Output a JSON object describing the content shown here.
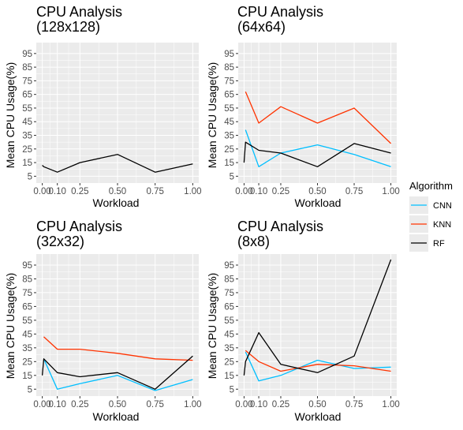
{
  "legend": {
    "title": "Algorithm",
    "entries": [
      {
        "name": "CNN",
        "color": "#00BFFF"
      },
      {
        "name": "KNN",
        "color": "#FF3300"
      },
      {
        "name": "RF",
        "color": "#000000"
      }
    ]
  },
  "chart_data": [
    {
      "type": "line",
      "title": [
        "CPU Analysis",
        "(128x128)"
      ],
      "xlabel": "Workload",
      "ylabel": "Mean CPU Usage(%)",
      "x_ticks": [
        "0.00",
        "0.10",
        "0.25",
        "0.50",
        "0.75",
        "1.00"
      ],
      "y_ticks": [
        "5",
        "15",
        "25",
        "35",
        "45",
        "55",
        "65",
        "75",
        "85",
        "95"
      ],
      "xlim": [
        -0.04,
        1.04
      ],
      "ylim": [
        0,
        103
      ],
      "series": [
        {
          "name": "RF",
          "color": "#000000",
          "x": [
            0.0,
            0.01,
            0.1,
            0.25,
            0.5,
            0.75,
            1.0
          ],
          "y": [
            13,
            12,
            8,
            15,
            21,
            8,
            14
          ]
        }
      ]
    },
    {
      "type": "line",
      "title": [
        "CPU Analysis",
        "(64x64)"
      ],
      "xlabel": "Workload",
      "ylabel": "Mean CPU Usage(%)",
      "x_ticks": [
        "0.00",
        "0.10",
        "0.25",
        "0.50",
        "0.75",
        "1.00"
      ],
      "y_ticks": [
        "5",
        "15",
        "25",
        "35",
        "45",
        "55",
        "65",
        "75",
        "85",
        "95"
      ],
      "xlim": [
        -0.04,
        1.04
      ],
      "ylim": [
        0,
        103
      ],
      "series": [
        {
          "name": "CNN",
          "color": "#00BFFF",
          "x": [
            0.01,
            0.1,
            0.25,
            0.5,
            0.75,
            1.0
          ],
          "y": [
            39,
            12,
            22,
            28,
            21,
            12
          ]
        },
        {
          "name": "KNN",
          "color": "#FF3300",
          "x": [
            0.01,
            0.1,
            0.25,
            0.5,
            0.75,
            1.0
          ],
          "y": [
            67,
            44,
            56,
            44,
            55,
            29
          ]
        },
        {
          "name": "RF",
          "color": "#000000",
          "x": [
            0.0,
            0.01,
            0.1,
            0.25,
            0.5,
            0.75,
            1.0
          ],
          "y": [
            15,
            30,
            24,
            22,
            12,
            29,
            22
          ]
        }
      ]
    },
    {
      "type": "line",
      "title": [
        "CPU Analysis",
        "(32x32)"
      ],
      "xlabel": "Workload",
      "ylabel": "Mean CPU Usage(%)",
      "x_ticks": [
        "0.00",
        "0.10",
        "0.25",
        "0.50",
        "0.75",
        "1.00"
      ],
      "y_ticks": [
        "5",
        "15",
        "25",
        "35",
        "45",
        "55",
        "65",
        "75",
        "85",
        "95"
      ],
      "xlim": [
        -0.04,
        1.04
      ],
      "ylim": [
        0,
        103
      ],
      "series": [
        {
          "name": "CNN",
          "color": "#00BFFF",
          "x": [
            0.01,
            0.1,
            0.25,
            0.5,
            0.75,
            1.0
          ],
          "y": [
            27,
            5,
            9,
            15,
            4,
            12
          ]
        },
        {
          "name": "KNN",
          "color": "#FF3300",
          "x": [
            0.01,
            0.1,
            0.25,
            0.5,
            0.75,
            1.0
          ],
          "y": [
            43,
            34,
            34,
            31,
            27,
            26
          ]
        },
        {
          "name": "RF",
          "color": "#000000",
          "x": [
            0.0,
            0.01,
            0.1,
            0.25,
            0.5,
            0.75,
            1.0
          ],
          "y": [
            15,
            27,
            17,
            14,
            17,
            5,
            29
          ]
        }
      ]
    },
    {
      "type": "line",
      "title": [
        "CPU Analysis",
        "(8x8)"
      ],
      "xlabel": "Workload",
      "ylabel": "Mean CPU Usage(%)",
      "x_ticks": [
        "0.00",
        "0.10",
        "0.25",
        "0.50",
        "0.75",
        "1.00"
      ],
      "y_ticks": [
        "5",
        "15",
        "25",
        "35",
        "45",
        "55",
        "65",
        "75",
        "85",
        "95"
      ],
      "xlim": [
        -0.04,
        1.04
      ],
      "ylim": [
        0,
        103
      ],
      "series": [
        {
          "name": "CNN",
          "color": "#00BFFF",
          "x": [
            0.01,
            0.1,
            0.25,
            0.5,
            0.75,
            1.0
          ],
          "y": [
            32,
            11,
            15,
            26,
            20,
            21
          ]
        },
        {
          "name": "KNN",
          "color": "#FF3300",
          "x": [
            0.01,
            0.1,
            0.25,
            0.5,
            0.75,
            1.0
          ],
          "y": [
            33,
            25,
            18,
            23,
            22,
            18
          ]
        },
        {
          "name": "RF",
          "color": "#000000",
          "x": [
            0.0,
            0.01,
            0.1,
            0.25,
            0.5,
            0.75,
            1.0
          ],
          "y": [
            15,
            25,
            46,
            23,
            17,
            29,
            99
          ]
        }
      ]
    }
  ]
}
